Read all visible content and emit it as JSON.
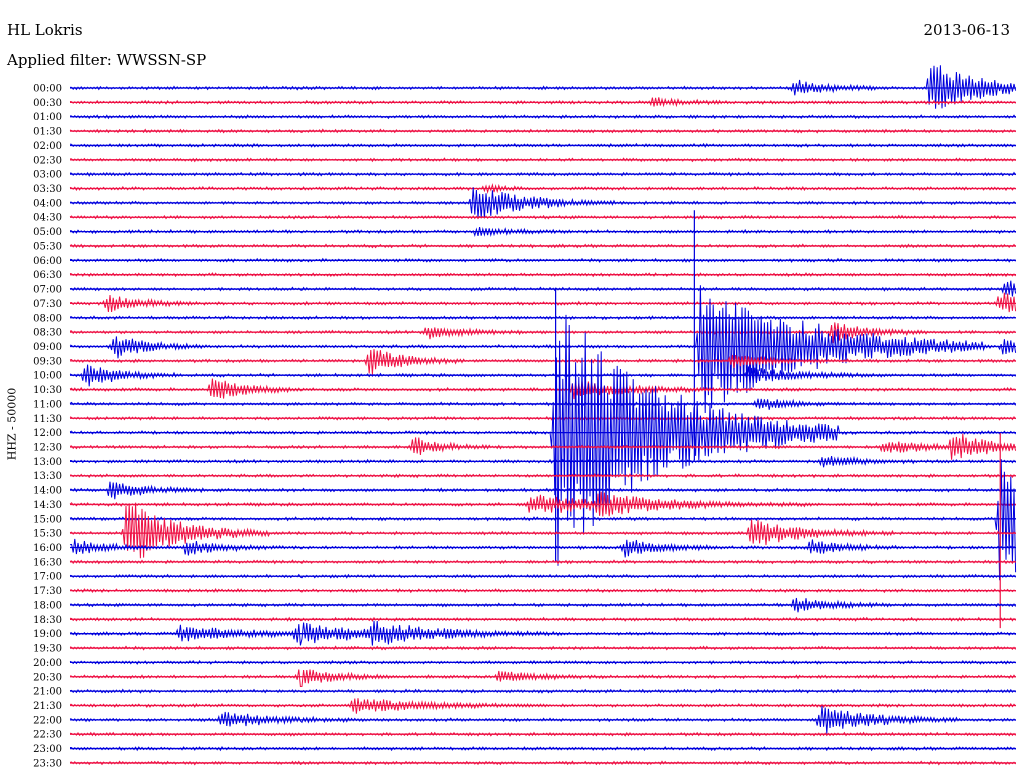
{
  "header": {
    "station": "HL Lokris",
    "date": "2013-06-13",
    "filter": "Applied filter: WWSSN-SP"
  },
  "colors": {
    "even": "#0000dd",
    "odd": "#ee1144"
  },
  "chart_data": {
    "type": "line",
    "ylabel": "HHZ - 50000",
    "tick_labels": [
      "00:00",
      "00:30",
      "01:00",
      "01:30",
      "02:00",
      "02:30",
      "03:00",
      "03:30",
      "04:00",
      "04:30",
      "05:00",
      "05:30",
      "06:00",
      "06:30",
      "07:00",
      "07:30",
      "08:00",
      "08:30",
      "09:00",
      "09:30",
      "10:00",
      "10:30",
      "11:00",
      "11:30",
      "12:00",
      "12:30",
      "13:00",
      "13:30",
      "14:00",
      "14:30",
      "15:00",
      "15:30",
      "16:00",
      "16:30",
      "17:00",
      "17:30",
      "18:00",
      "18:30",
      "19:00",
      "19:30",
      "20:00",
      "20:30",
      "21:00",
      "21:30",
      "22:00",
      "22:30",
      "23:00",
      "23:30"
    ],
    "trace_span_minutes": 30,
    "events": [
      {
        "trace": 0,
        "minute": 23.0,
        "amp": 8,
        "dur": 1.0
      },
      {
        "trace": 0,
        "minute": 27.3,
        "amp": 28,
        "dur": 1.5
      },
      {
        "trace": 1,
        "minute": 18.5,
        "amp": 5,
        "dur": 0.8
      },
      {
        "trace": 7,
        "minute": 13.2,
        "amp": 4,
        "dur": 0.5
      },
      {
        "trace": 8,
        "minute": 12.8,
        "amp": 18,
        "dur": 1.5
      },
      {
        "trace": 10,
        "minute": 12.9,
        "amp": 4,
        "dur": 1.0
      },
      {
        "trace": 14,
        "minute": 29.7,
        "amp": 8,
        "dur": 1.0
      },
      {
        "trace": 15,
        "minute": 1.2,
        "amp": 8,
        "dur": 1.0
      },
      {
        "trace": 15,
        "minute": 29.5,
        "amp": 10,
        "dur": 1.5
      },
      {
        "trace": 17,
        "minute": 11.3,
        "amp": 7,
        "dur": 1.0
      },
      {
        "trace": 17,
        "minute": 24.2,
        "amp": 10,
        "dur": 1.0
      },
      {
        "trace": 18,
        "minute": 20.0,
        "amp": 75,
        "dur": 3.0
      },
      {
        "trace": 18,
        "minute": 1.4,
        "amp": 12,
        "dur": 1.0
      },
      {
        "trace": 18,
        "minute": 29.6,
        "amp": 8,
        "dur": 1.0
      },
      {
        "trace": 19,
        "minute": 9.5,
        "amp": 14,
        "dur": 1.0
      },
      {
        "trace": 19,
        "minute": 21.0,
        "amp": 8,
        "dur": 1.0
      },
      {
        "trace": 20,
        "minute": 0.5,
        "amp": 12,
        "dur": 1.0
      },
      {
        "trace": 20,
        "minute": 21.5,
        "amp": 8,
        "dur": 1.5
      },
      {
        "trace": 21,
        "minute": 4.5,
        "amp": 12,
        "dur": 1.0
      },
      {
        "trace": 21,
        "minute": 16.0,
        "amp": 10,
        "dur": 1.5
      },
      {
        "trace": 22,
        "minute": 21.8,
        "amp": 8,
        "dur": 0.8
      },
      {
        "trace": 24,
        "minute": 15.4,
        "amp": 140,
        "dur": 3.0
      },
      {
        "trace": 25,
        "minute": 10.9,
        "amp": 10,
        "dur": 0.8
      },
      {
        "trace": 25,
        "minute": 28.0,
        "amp": 15,
        "dur": 1.0
      },
      {
        "trace": 25,
        "minute": 25.8,
        "amp": 7,
        "dur": 1.5
      },
      {
        "trace": 26,
        "minute": 23.9,
        "amp": 6,
        "dur": 1.0
      },
      {
        "trace": 28,
        "minute": 1.3,
        "amp": 10,
        "dur": 1.0
      },
      {
        "trace": 29,
        "minute": 14.6,
        "amp": 10,
        "dur": 3.0
      },
      {
        "trace": 29,
        "minute": 16.8,
        "amp": 8,
        "dur": 1.5
      },
      {
        "trace": 30,
        "minute": 29.5,
        "amp": 80,
        "dur": 1.5
      },
      {
        "trace": 31,
        "minute": 1.8,
        "amp": 35,
        "dur": 1.5
      },
      {
        "trace": 31,
        "minute": 21.6,
        "amp": 15,
        "dur": 1.5
      },
      {
        "trace": 32,
        "minute": 0.1,
        "amp": 8,
        "dur": 1.0
      },
      {
        "trace": 32,
        "minute": 3.7,
        "amp": 8,
        "dur": 1.0
      },
      {
        "trace": 32,
        "minute": 17.6,
        "amp": 10,
        "dur": 1.0
      },
      {
        "trace": 32,
        "minute": 23.5,
        "amp": 8,
        "dur": 1.0
      },
      {
        "trace": 36,
        "minute": 23.0,
        "amp": 8,
        "dur": 1.0
      },
      {
        "trace": 38,
        "minute": 3.5,
        "amp": 8,
        "dur": 2.0
      },
      {
        "trace": 38,
        "minute": 7.2,
        "amp": 10,
        "dur": 2.0
      },
      {
        "trace": 38,
        "minute": 9.6,
        "amp": 10,
        "dur": 2.0
      },
      {
        "trace": 41,
        "minute": 7.3,
        "amp": 10,
        "dur": 1.0
      },
      {
        "trace": 41,
        "minute": 13.6,
        "amp": 6,
        "dur": 1.0
      },
      {
        "trace": 43,
        "minute": 9.0,
        "amp": 8,
        "dur": 2.0
      },
      {
        "trace": 44,
        "minute": 4.8,
        "amp": 8,
        "dur": 1.5
      },
      {
        "trace": 44,
        "minute": 23.8,
        "amp": 15,
        "dur": 1.5
      }
    ],
    "tall_spikes": [
      {
        "trace": 24,
        "minute": 15.4,
        "up": 145,
        "down": 130
      },
      {
        "trace": 20,
        "minute": 19.8,
        "up": 165,
        "down": 85
      },
      {
        "trace": 31,
        "minute": 29.5,
        "up": 100,
        "down": 95
      }
    ]
  }
}
